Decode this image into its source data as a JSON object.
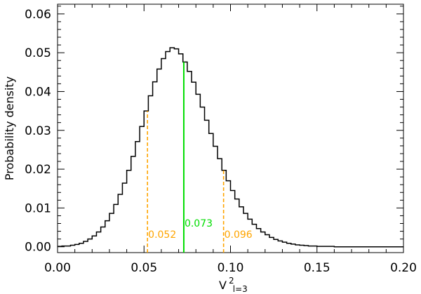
{
  "chart_data": {
    "type": "line",
    "style": "step-histogram",
    "title": "",
    "xlabel": "V",
    "xlabel_superscript": "2",
    "xlabel_subscript": "l=3",
    "ylabel": "Probability  density",
    "xlim": [
      0.0,
      0.2
    ],
    "ylim": [
      -0.0015,
      0.0625
    ],
    "xticks": [
      0.0,
      0.05,
      0.1,
      0.15,
      0.2
    ],
    "xtick_labels": [
      "0.00",
      "0.05",
      "0.10",
      "0.15",
      "0.20"
    ],
    "yticks": [
      0.0,
      0.01,
      0.02,
      0.03,
      0.04,
      0.05,
      0.06
    ],
    "ytick_labels": [
      "0.00",
      "0.01",
      "0.02",
      "0.03",
      "0.04",
      "0.05",
      "0.06"
    ],
    "grid": false,
    "series": [
      {
        "color": "#000000",
        "bin_width": 0.0025,
        "x": [
          0.0,
          0.0025,
          0.005,
          0.0075,
          0.01,
          0.0125,
          0.015,
          0.0175,
          0.02,
          0.0225,
          0.025,
          0.0275,
          0.03,
          0.0325,
          0.035,
          0.0375,
          0.04,
          0.0425,
          0.045,
          0.0475,
          0.05,
          0.0525,
          0.055,
          0.0575,
          0.06,
          0.0625,
          0.065,
          0.0675,
          0.07,
          0.0725,
          0.075,
          0.0775,
          0.08,
          0.0825,
          0.085,
          0.0875,
          0.09,
          0.0925,
          0.095,
          0.0975,
          0.1,
          0.1025,
          0.105,
          0.1075,
          0.11,
          0.1125,
          0.115,
          0.1175,
          0.12,
          0.1225,
          0.125,
          0.1275,
          0.13,
          0.1325,
          0.135,
          0.1375,
          0.14,
          0.1425,
          0.145,
          0.1475,
          0.15,
          0.1525,
          0.155,
          0.1575,
          0.16,
          0.1625,
          0.165,
          0.1675,
          0.17,
          0.1725,
          0.175,
          0.1775,
          0.18,
          0.1825
        ],
        "y": [
          0.0001,
          0.0002,
          0.0002,
          0.0004,
          0.0006,
          0.0009,
          0.0014,
          0.002,
          0.0028,
          0.0038,
          0.0051,
          0.0067,
          0.0086,
          0.0109,
          0.0135,
          0.0164,
          0.0197,
          0.0233,
          0.0271,
          0.031,
          0.035,
          0.0389,
          0.0425,
          0.0458,
          0.0485,
          0.0503,
          0.0513,
          0.051,
          0.0497,
          0.0476,
          0.0452,
          0.0424,
          0.0393,
          0.036,
          0.0326,
          0.0292,
          0.0259,
          0.0227,
          0.0197,
          0.017,
          0.0145,
          0.0123,
          0.0103,
          0.0086,
          0.0071,
          0.0058,
          0.0047,
          0.0038,
          0.0031,
          0.0024,
          0.0019,
          0.0015,
          0.0012,
          0.0009,
          0.0007,
          0.0005,
          0.0004,
          0.0003,
          0.0002,
          0.0002,
          0.0001,
          0.0001,
          0.0001,
          0.0001,
          0.0,
          0.0,
          0.0,
          0.0,
          0.0,
          0.0,
          0.0,
          0.0,
          0.0,
          0.0
        ]
      }
    ],
    "vlines": [
      {
        "x": 0.052,
        "label": "0.052",
        "color": "#FFA500",
        "style": "dashed"
      },
      {
        "x": 0.073,
        "label": "0.073",
        "color": "#00DD00",
        "style": "solid"
      },
      {
        "x": 0.096,
        "label": "0.096",
        "color": "#FFA500",
        "style": "dashed"
      }
    ]
  }
}
